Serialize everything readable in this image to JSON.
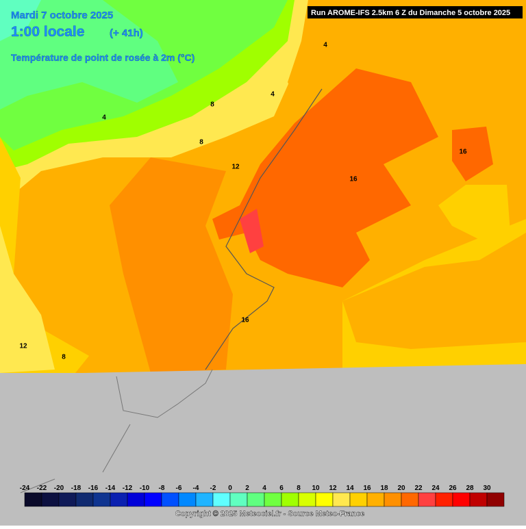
{
  "header": {
    "date": "Mardi 7 octobre 2025",
    "time": "1:00 locale",
    "offset": "(+ 41h)",
    "parameter": "Température de point de rosée à 2m (°C)",
    "run": "Run AROME-IFS 2.5km 6 Z du Dimanche 5 octobre 2025"
  },
  "contour_labels": [
    4,
    8,
    4,
    4,
    8,
    12,
    16,
    16,
    16,
    12,
    8
  ],
  "legend": {
    "ticks": [
      -24,
      -22,
      -20,
      -18,
      -16,
      -14,
      -12,
      -10,
      -8,
      -6,
      -4,
      -2,
      0,
      2,
      4,
      6,
      8,
      10,
      12,
      14,
      16,
      18,
      20,
      22,
      24,
      26,
      28,
      30
    ],
    "colors": [
      "#0a0a2a",
      "#0c1040",
      "#0f1a58",
      "#102a70",
      "#0f3490",
      "#0a20b0",
      "#0000d8",
      "#0000ff",
      "#0050ff",
      "#0088ff",
      "#20b4ff",
      "#60ffff",
      "#60ffc0",
      "#60ff80",
      "#70ff40",
      "#a0ff00",
      "#d8ff00",
      "#ffff00",
      "#ffe850",
      "#ffd000",
      "#ffb000",
      "#ff9000",
      "#ff6800",
      "#ff4040",
      "#ff2000",
      "#ff0000",
      "#c00000",
      "#900000"
    ]
  },
  "footer": {
    "copyright": "Copyright © 2025 Meteociel.fr - Source Meteo-France"
  }
}
